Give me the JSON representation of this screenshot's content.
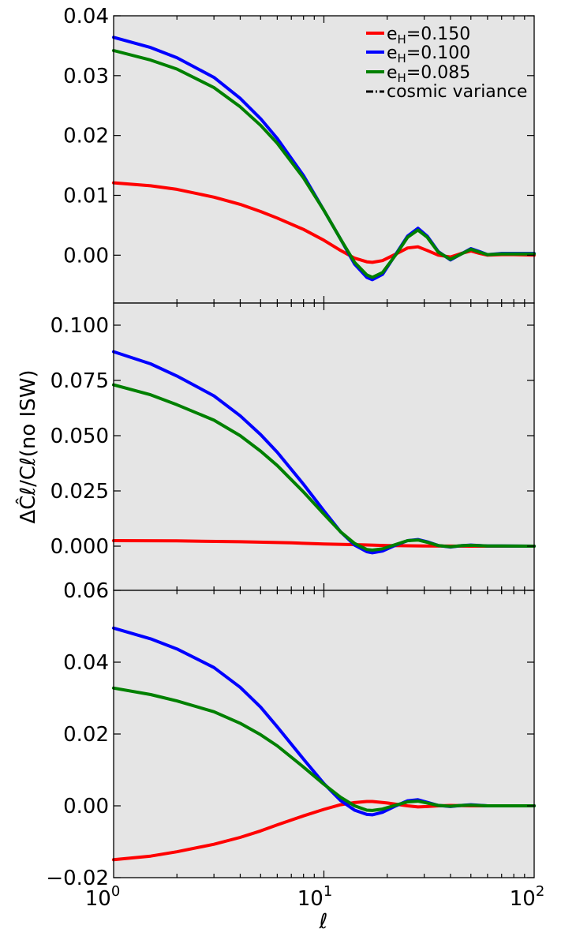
{
  "chart_data": {
    "type": "line",
    "xlabel": "ℓ",
    "ylabel": "ΔĈℓ/Cℓ(no ISW)",
    "xscale": "log",
    "xlim": [
      1,
      100
    ],
    "x_tick_labels": [
      {
        "base": "10",
        "exp": "0"
      },
      {
        "base": "10",
        "exp": "1"
      },
      {
        "base": "10",
        "exp": "2"
      }
    ],
    "background": "#e5e5e5",
    "legend": {
      "placement": "top-right",
      "entries": [
        {
          "label": "e",
          "sub": "H",
          "value": "=0.150",
          "color": "#ff0000",
          "style": "solid"
        },
        {
          "label": "e",
          "sub": "H",
          "value": "=0.100",
          "color": "#0000ff",
          "style": "solid"
        },
        {
          "label": "e",
          "sub": "H",
          "value": "=0.085",
          "color": "#008000",
          "style": "solid"
        },
        {
          "label": "cosmic variance",
          "color": "#000000",
          "style": "dashdot"
        }
      ]
    },
    "panels": [
      {
        "ylim": [
          -0.008,
          0.04
        ],
        "yticks": [
          0.0,
          0.01,
          0.02,
          0.03,
          0.04
        ],
        "ytick_labels": [
          "0.00",
          "0.01",
          "0.02",
          "0.03",
          "0.04"
        ],
        "series": [
          {
            "color": "#ff0000",
            "points": [
              [
                1,
                0.0121
              ],
              [
                1.5,
                0.0116
              ],
              [
                2,
                0.011
              ],
              [
                3,
                0.0097
              ],
              [
                4,
                0.0085
              ],
              [
                5,
                0.0073
              ],
              [
                6,
                0.0062
              ],
              [
                8,
                0.0043
              ],
              [
                10,
                0.0025
              ],
              [
                12,
                0.0008
              ],
              [
                14,
                -0.0005
              ],
              [
                16,
                -0.0011
              ],
              [
                17,
                -0.0012
              ],
              [
                19,
                -0.0009
              ],
              [
                22,
                0.0002
              ],
              [
                25,
                0.0012
              ],
              [
                28,
                0.0014
              ],
              [
                31,
                0.0008
              ],
              [
                35,
                0.0
              ],
              [
                40,
                -0.0003
              ],
              [
                45,
                0.0003
              ],
              [
                50,
                0.0007
              ],
              [
                55,
                0.0003
              ],
              [
                60,
                0.0
              ],
              [
                70,
                0.0001
              ],
              [
                80,
                0.0001
              ],
              [
                100,
                0.0
              ]
            ]
          },
          {
            "color": "#0000ff",
            "points": [
              [
                1,
                0.0364
              ],
              [
                1.5,
                0.0347
              ],
              [
                2,
                0.033
              ],
              [
                3,
                0.0297
              ],
              [
                4,
                0.0262
              ],
              [
                5,
                0.0228
              ],
              [
                6,
                0.0195
              ],
              [
                8,
                0.0133
              ],
              [
                10,
                0.0075
              ],
              [
                12,
                0.0027
              ],
              [
                14,
                -0.0015
              ],
              [
                16,
                -0.0037
              ],
              [
                17,
                -0.0041
              ],
              [
                19,
                -0.0032
              ],
              [
                22,
                0.0002
              ],
              [
                25,
                0.0032
              ],
              [
                28,
                0.0045
              ],
              [
                31,
                0.0032
              ],
              [
                35,
                0.0006
              ],
              [
                40,
                -0.0008
              ],
              [
                45,
                0.0002
              ],
              [
                50,
                0.0011
              ],
              [
                55,
                0.0006
              ],
              [
                60,
                0.0001
              ],
              [
                70,
                0.0003
              ],
              [
                80,
                0.0003
              ],
              [
                100,
                0.0003
              ]
            ]
          },
          {
            "color": "#008000",
            "points": [
              [
                1,
                0.0342
              ],
              [
                1.5,
                0.0326
              ],
              [
                2,
                0.0311
              ],
              [
                3,
                0.028
              ],
              [
                4,
                0.0248
              ],
              [
                5,
                0.0217
              ],
              [
                6,
                0.0187
              ],
              [
                8,
                0.0129
              ],
              [
                10,
                0.0075
              ],
              [
                12,
                0.0027
              ],
              [
                14,
                -0.0012
              ],
              [
                16,
                -0.0033
              ],
              [
                17,
                -0.0037
              ],
              [
                19,
                -0.0029
              ],
              [
                22,
                0.0001
              ],
              [
                25,
                0.003
              ],
              [
                28,
                0.0042
              ],
              [
                31,
                0.003
              ],
              [
                35,
                0.0005
              ],
              [
                40,
                -0.0007
              ],
              [
                45,
                0.0002
              ],
              [
                50,
                0.001
              ],
              [
                55,
                0.0005
              ],
              [
                60,
                0.0001
              ],
              [
                70,
                0.0002
              ],
              [
                80,
                0.0002
              ],
              [
                100,
                0.0002
              ]
            ]
          }
        ]
      },
      {
        "ylim": [
          -0.02,
          0.11
        ],
        "yticks": [
          0.0,
          0.025,
          0.05,
          0.075,
          0.1
        ],
        "ytick_labels": [
          "0.000",
          "0.025",
          "0.050",
          "0.075",
          "0.100"
        ],
        "series": [
          {
            "color": "#ff0000",
            "points": [
              [
                1,
                0.0025
              ],
              [
                2,
                0.0024
              ],
              [
                4,
                0.002
              ],
              [
                7,
                0.0015
              ],
              [
                10,
                0.001
              ],
              [
                15,
                0.0006
              ],
              [
                20,
                0.0003
              ],
              [
                30,
                0.0001
              ],
              [
                50,
                0.0
              ],
              [
                100,
                0.0
              ]
            ]
          },
          {
            "color": "#0000ff",
            "points": [
              [
                1,
                0.088
              ],
              [
                1.5,
                0.0825
              ],
              [
                2,
                0.077
              ],
              [
                3,
                0.068
              ],
              [
                4,
                0.059
              ],
              [
                5,
                0.0505
              ],
              [
                6,
                0.0425
              ],
              [
                8,
                0.028
              ],
              [
                10,
                0.016
              ],
              [
                12,
                0.0065
              ],
              [
                14,
                0.0005
              ],
              [
                16,
                -0.0025
              ],
              [
                17,
                -0.003
              ],
              [
                19,
                -0.0022
              ],
              [
                22,
                0.0005
              ],
              [
                25,
                0.0025
              ],
              [
                28,
                0.003
              ],
              [
                31,
                0.002
              ],
              [
                35,
                0.0003
              ],
              [
                40,
                -0.0004
              ],
              [
                45,
                0.0002
              ],
              [
                50,
                0.0005
              ],
              [
                60,
                0.0001
              ],
              [
                100,
                0.0
              ]
            ]
          },
          {
            "color": "#008000",
            "points": [
              [
                1,
                0.073
              ],
              [
                1.5,
                0.0685
              ],
              [
                2,
                0.064
              ],
              [
                3,
                0.057
              ],
              [
                4,
                0.05
              ],
              [
                5,
                0.043
              ],
              [
                6,
                0.0365
              ],
              [
                8,
                0.0245
              ],
              [
                10,
                0.0145
              ],
              [
                12,
                0.0065
              ],
              [
                14,
                0.0012
              ],
              [
                16,
                -0.0015
              ],
              [
                17,
                -0.0018
              ],
              [
                19,
                -0.0012
              ],
              [
                22,
                0.0008
              ],
              [
                25,
                0.0025
              ],
              [
                28,
                0.0028
              ],
              [
                31,
                0.0018
              ],
              [
                35,
                0.0003
              ],
              [
                40,
                -0.0003
              ],
              [
                45,
                0.0002
              ],
              [
                50,
                0.0004
              ],
              [
                60,
                0.0001
              ],
              [
                100,
                0.0
              ]
            ]
          }
        ]
      },
      {
        "ylim": [
          -0.02,
          0.06
        ],
        "yticks": [
          -0.02,
          0.0,
          0.02,
          0.04,
          0.06
        ],
        "ytick_labels": [
          "−0.02",
          "0.00",
          "0.02",
          "0.04",
          "0.06"
        ],
        "series": [
          {
            "color": "#ff0000",
            "points": [
              [
                1,
                -0.015
              ],
              [
                1.5,
                -0.014
              ],
              [
                2,
                -0.0128
              ],
              [
                3,
                -0.0107
              ],
              [
                4,
                -0.0088
              ],
              [
                5,
                -0.007
              ],
              [
                6,
                -0.0053
              ],
              [
                8,
                -0.0028
              ],
              [
                10,
                -0.001
              ],
              [
                12,
                0.0003
              ],
              [
                14,
                0.0009
              ],
              [
                16,
                0.0012
              ],
              [
                17,
                0.0012
              ],
              [
                20,
                0.0008
              ],
              [
                25,
                0.0
              ],
              [
                28,
                -0.0003
              ],
              [
                31,
                -0.0002
              ],
              [
                35,
                0.0
              ],
              [
                40,
                0.0001
              ],
              [
                50,
                0.0
              ],
              [
                100,
                0.0
              ]
            ]
          },
          {
            "color": "#0000ff",
            "points": [
              [
                1,
                0.0495
              ],
              [
                1.5,
                0.0465
              ],
              [
                2,
                0.0437
              ],
              [
                3,
                0.0385
              ],
              [
                4,
                0.033
              ],
              [
                5,
                0.0275
              ],
              [
                6,
                0.022
              ],
              [
                8,
                0.013
              ],
              [
                10,
                0.0062
              ],
              [
                12,
                0.0015
              ],
              [
                14,
                -0.0012
              ],
              [
                16,
                -0.0024
              ],
              [
                17,
                -0.0025
              ],
              [
                19,
                -0.0018
              ],
              [
                22,
                0.0
              ],
              [
                25,
                0.0014
              ],
              [
                28,
                0.0017
              ],
              [
                31,
                0.001
              ],
              [
                35,
                0.0001
              ],
              [
                40,
                -0.0002
              ],
              [
                45,
                0.0001
              ],
              [
                50,
                0.0003
              ],
              [
                60,
                0.0
              ],
              [
                100,
                0.0
              ]
            ]
          },
          {
            "color": "#008000",
            "points": [
              [
                1,
                0.0328
              ],
              [
                1.5,
                0.031
              ],
              [
                2,
                0.0292
              ],
              [
                3,
                0.0262
              ],
              [
                4,
                0.023
              ],
              [
                5,
                0.0198
              ],
              [
                6,
                0.0167
              ],
              [
                8,
                0.0108
              ],
              [
                10,
                0.006
              ],
              [
                12,
                0.0024
              ],
              [
                14,
                0.0
              ],
              [
                16,
                -0.0012
              ],
              [
                17,
                -0.0013
              ],
              [
                19,
                -0.0009
              ],
              [
                22,
                0.0002
              ],
              [
                25,
                0.0011
              ],
              [
                28,
                0.0013
              ],
              [
                31,
                0.0008
              ],
              [
                35,
                0.0001
              ],
              [
                40,
                -0.0001
              ],
              [
                45,
                0.0001
              ],
              [
                50,
                0.0002
              ],
              [
                60,
                0.0
              ],
              [
                100,
                0.0
              ]
            ]
          }
        ]
      }
    ]
  }
}
